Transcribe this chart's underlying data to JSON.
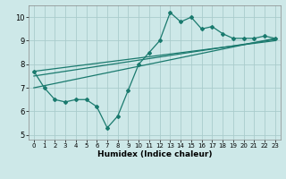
{
  "x": [
    0,
    1,
    2,
    3,
    4,
    5,
    6,
    7,
    8,
    9,
    10,
    11,
    12,
    13,
    14,
    15,
    16,
    17,
    18,
    19,
    20,
    21,
    22,
    23
  ],
  "main_y": [
    7.7,
    7.0,
    6.5,
    6.4,
    6.5,
    6.5,
    6.2,
    5.3,
    5.8,
    6.9,
    8.0,
    8.5,
    9.0,
    10.2,
    9.8,
    10.0,
    9.5,
    9.6,
    9.3,
    9.1,
    9.1,
    9.1,
    9.2,
    9.1
  ],
  "line2_x": [
    0,
    23
  ],
  "line2_y": [
    7.0,
    9.1
  ],
  "line3_x": [
    0,
    23
  ],
  "line3_y": [
    7.5,
    9.05
  ],
  "line4_x": [
    0,
    23
  ],
  "line4_y": [
    7.7,
    9.0
  ],
  "color": "#1a7a6e",
  "bg_color": "#cde8e8",
  "grid_color": "#aacccc",
  "xlabel": "Humidex (Indice chaleur)",
  "xlim": [
    -0.5,
    23.5
  ],
  "ylim": [
    4.8,
    10.5
  ],
  "yticks": [
    5,
    6,
    7,
    8,
    9,
    10
  ],
  "xticks": [
    0,
    1,
    2,
    3,
    4,
    5,
    6,
    7,
    8,
    9,
    10,
    11,
    12,
    13,
    14,
    15,
    16,
    17,
    18,
    19,
    20,
    21,
    22,
    23
  ]
}
